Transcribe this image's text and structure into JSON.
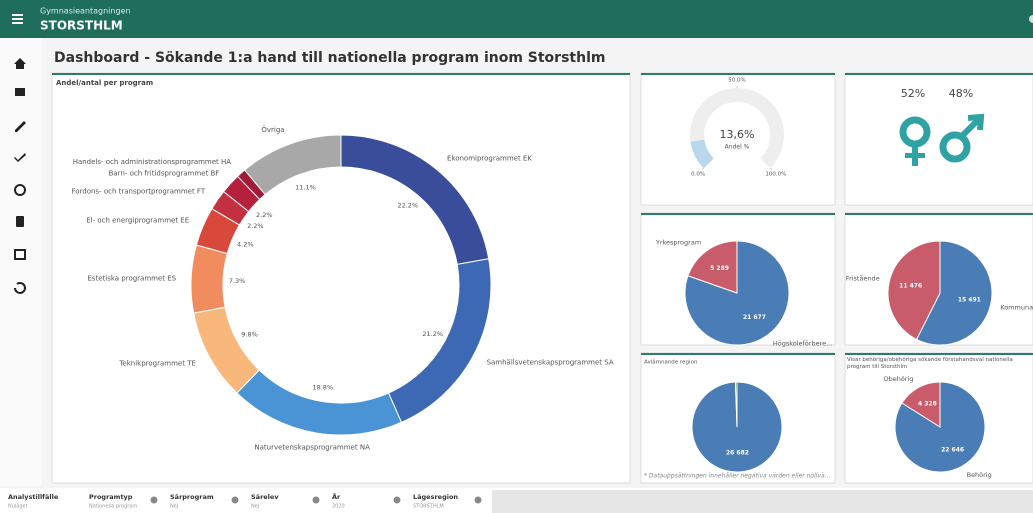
{
  "header": {
    "app": "Gymnasieantagningen",
    "org": "STORSTHLM"
  },
  "sheet_title": "Dashboard - Sökande 1:a hand till nationella program inom Storsthlm",
  "chart_data": [
    {
      "type": "donut",
      "title": "Andel/antal per program",
      "categories": [
        "Ekonomiprogrammet EK",
        "Samhällsvetenskapsprogrammet SA",
        "Naturvetenskapsprogrammet NA",
        "Teknikprogrammet TE",
        "Estetiska programmet ES",
        "El- och energiprogrammet EE",
        "Fordons- och transportprogrammet FT",
        "Barn- och fritidsprogrammet BF",
        "Handels- och administrationsprogrammet HA",
        "Övriga"
      ],
      "values": [
        22.2,
        21.2,
        18.8,
        9.8,
        7.3,
        4.2,
        2.2,
        2.2,
        1.0,
        11.1
      ],
      "value_labels": [
        "22.2%",
        "21.2%",
        "18.8%",
        "9.8%",
        "7.3%",
        "4.2%",
        "2.2%",
        "2.2%",
        null,
        "11.1%"
      ],
      "colors": [
        "#3a4d9b",
        "#3d69b4",
        "#4a93d5",
        "#f8b87c",
        "#f08c5e",
        "#d8493b",
        "#c3303f",
        "#b5213c",
        "#a01b38",
        "#a8a8a8"
      ]
    },
    {
      "type": "gauge",
      "value": 13.6,
      "value_label": "13,6%",
      "label": "Andel %",
      "ylim": [
        0,
        100
      ],
      "yticks": [
        {
          "value": 0,
          "label": "0.0%"
        },
        {
          "value": 50,
          "label": "50.0%"
        },
        {
          "value": 100,
          "label": "100.0%"
        }
      ],
      "color": "#b9d8ee"
    },
    {
      "type": "gender",
      "values": [
        52,
        48
      ],
      "value_labels": [
        "52%",
        "48%"
      ],
      "color": "#2fa3a3"
    },
    {
      "type": "pie",
      "categories": [
        "Högskoleförbere...",
        "Yrkesprogram"
      ],
      "values": [
        21677,
        5289
      ],
      "value_labels": [
        "21 677",
        "5 289"
      ],
      "colors": [
        "#4a7cb5",
        "#c95c6b"
      ]
    },
    {
      "type": "pie",
      "categories": [
        "Kommunal",
        "Fristående"
      ],
      "values": [
        15491,
        11476
      ],
      "value_labels": [
        "15 491",
        "11 476"
      ],
      "colors": [
        "#4a7cb5",
        "#c95c6b"
      ]
    },
    {
      "type": "pie",
      "title": "Avlämnande region",
      "categories": [
        null,
        null
      ],
      "values": [
        26682,
        150
      ],
      "value_labels": [
        "26 682",
        null
      ],
      "colors": [
        "#4a7cb5",
        "#2e8b3e"
      ],
      "footnote": "* Datauppsättningen innehåller negativa värden eller nollvä..."
    },
    {
      "type": "pie",
      "title": "Visar behöriga/obehöriga sökande förstahandsval nationella program till Storsthlm",
      "categories": [
        "Behörig",
        "Obehörig"
      ],
      "values": [
        22646,
        4328
      ],
      "value_labels": [
        "22 646",
        "4 328"
      ],
      "colors": [
        "#4a7cb5",
        "#c95c6b"
      ]
    }
  ],
  "filters": [
    {
      "label": "Analystillfälle",
      "value": "Nuläget"
    },
    {
      "label": "Programtyp",
      "value": "Nationella program"
    },
    {
      "label": "Särprogram",
      "value": "Nej"
    },
    {
      "label": "Särelev",
      "value": "Nej"
    },
    {
      "label": "År",
      "value": "2020"
    },
    {
      "label": "Lägesregion",
      "value": "STORSTHLM"
    }
  ]
}
